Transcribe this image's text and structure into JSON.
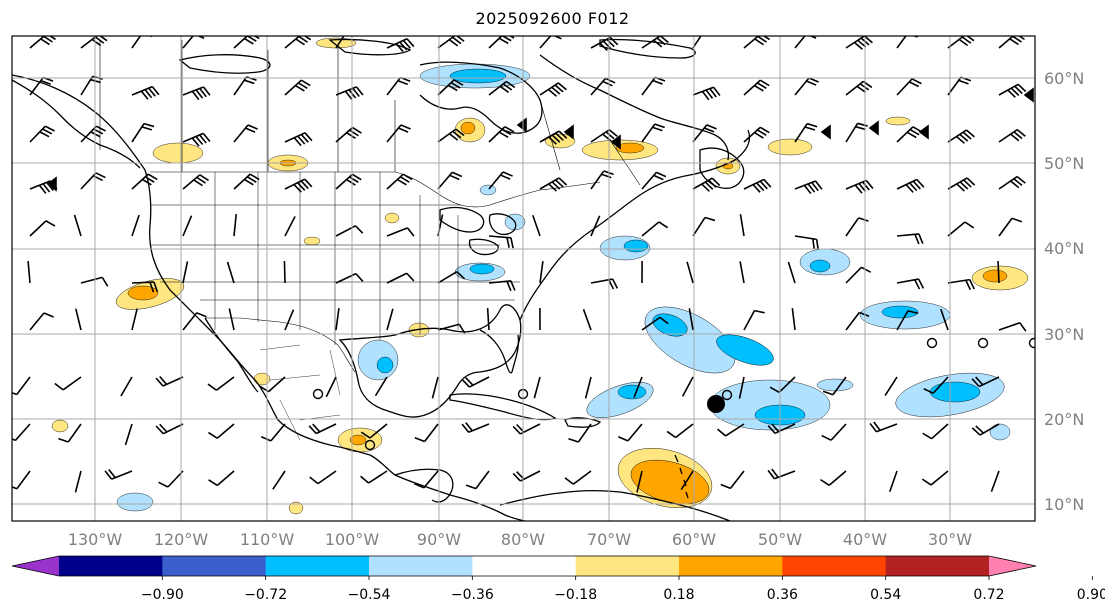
{
  "title": "2025092600 F012",
  "map": {
    "lon_labels": [
      "130°W",
      "120°W",
      "110°W",
      "100°W",
      "90°W",
      "80°W",
      "70°W",
      "60°W",
      "50°W",
      "40°W",
      "30°W"
    ],
    "lat_labels": [
      "60°N",
      "50°N",
      "40°N",
      "30°N",
      "20°N",
      "10°N"
    ],
    "background": "#ffffff",
    "grid_color": "#a8a8a8",
    "coastline_color": "#000000"
  },
  "colorbar": {
    "ticks": [
      "−0.90",
      "−0.72",
      "−0.54",
      "−0.36",
      "−0.18",
      "0.18",
      "0.36",
      "0.54",
      "0.72",
      "0.90"
    ],
    "colors": [
      "#9933cc",
      "#00008b",
      "#3a5fcd",
      "#00bfff",
      "#b0e2ff",
      "#ffffff",
      "#ffe680",
      "#ffa500",
      "#ff4500",
      "#b22222",
      "#ff80b0"
    ]
  },
  "fill_colors": {
    "light_blue": "#b0e2ff",
    "blue": "#00bfff",
    "light_yellow": "#ffe680",
    "orange": "#ffa500"
  }
}
